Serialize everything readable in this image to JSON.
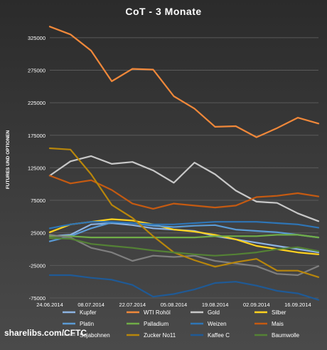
{
  "chart_data": {
    "type": "line",
    "title": "CoT - 3 Monate",
    "ylabel": "FUTURES UND OPTIONEN",
    "xlabel": "",
    "ylim": [
      -75000,
      350000
    ],
    "yticks": [
      -75000,
      -25000,
      25000,
      75000,
      125000,
      175000,
      225000,
      275000,
      325000
    ],
    "ytick_labels": [
      "-75000",
      "-25000",
      "25000",
      "75000",
      "125000",
      "175000",
      "225000",
      "275000",
      "325000"
    ],
    "x": [
      "24.06.2014",
      "01.07.2014",
      "08.07.2014",
      "15.07.2014",
      "22.07.2014",
      "29.07.2014",
      "05.08.2014",
      "12.08.2014",
      "19.08.2014",
      "26.08.2014",
      "02.09.2014",
      "09.09.2014",
      "16.09.2014",
      "23.09.2014"
    ],
    "xtick_labels": [
      "24.06.2014",
      "08.07.2014",
      "22.07.2014",
      "05.08.2014",
      "19.08.2014",
      "02.09.2014",
      "16.09.2014"
    ],
    "grid": true,
    "legend_position": "bottom",
    "series": [
      {
        "name": "Kupfer",
        "color": "#8db3e2",
        "values": [
          20000,
          22000,
          38000,
          40000,
          37000,
          32000,
          30000,
          28000,
          20000,
          15000,
          10000,
          5000,
          0,
          -5000
        ]
      },
      {
        "name": "WTI Rohöl",
        "color": "#f0883a",
        "values": [
          342000,
          330000,
          305000,
          258000,
          277000,
          276000,
          235000,
          216000,
          188000,
          189000,
          172000,
          186000,
          202000,
          193000
        ]
      },
      {
        "name": "Gold",
        "color": "#c8c8c8",
        "values": [
          113000,
          135000,
          143000,
          131000,
          134000,
          121000,
          102000,
          133000,
          115000,
          90000,
          73000,
          71000,
          55000,
          43000
        ]
      },
      {
        "name": "Silber",
        "color": "#ffd21f",
        "values": [
          26000,
          38000,
          42000,
          46000,
          44000,
          38000,
          30000,
          27000,
          22000,
          15000,
          5000,
          0,
          -5000,
          -8000
        ]
      },
      {
        "name": "Platin",
        "color": "#5b9bd5",
        "values": [
          12000,
          20000,
          32000,
          41000,
          40000,
          36000,
          34000,
          36000,
          37000,
          30000,
          28000,
          26000,
          22000,
          18000
        ]
      },
      {
        "name": "Palladium",
        "color": "#70ad47",
        "values": [
          20000,
          20000,
          18000,
          18000,
          18000,
          18000,
          18000,
          18000,
          20000,
          20000,
          20000,
          22000,
          22000,
          18000
        ]
      },
      {
        "name": "Weizen",
        "color": "#2e75b6",
        "values": [
          32000,
          38000,
          42000,
          42000,
          40000,
          38000,
          38000,
          40000,
          42000,
          42000,
          42000,
          40000,
          38000,
          33000
        ]
      },
      {
        "name": "Mais",
        "color": "#c55a11",
        "values": [
          113000,
          101000,
          106000,
          91000,
          70000,
          62000,
          70000,
          67000,
          64000,
          67000,
          80000,
          82000,
          86000,
          81000
        ]
      },
      {
        "name": "Sojabohnen",
        "color": "#7f7f7f",
        "values": [
          22000,
          18000,
          2000,
          -5000,
          -18000,
          -10000,
          -12000,
          -10000,
          -18000,
          -22000,
          -26000,
          -38000,
          -40000,
          -26000
        ]
      },
      {
        "name": "Zucker No11",
        "color": "#b8860b",
        "values": [
          155000,
          153000,
          115000,
          68000,
          48000,
          20000,
          -5000,
          -17000,
          -27000,
          -20000,
          -15000,
          -33000,
          -33000,
          -43000
        ]
      },
      {
        "name": "Kaffee C",
        "color": "#1f5a96",
        "values": [
          -40000,
          -40000,
          -44000,
          -47000,
          -55000,
          -73000,
          -69000,
          -62000,
          -52000,
          -50000,
          -56000,
          -64000,
          -68000,
          -78000
        ]
      },
      {
        "name": "Baumwolle",
        "color": "#548235",
        "values": [
          17000,
          16000,
          8000,
          5000,
          2000,
          -2000,
          -5000,
          -8000,
          -10000,
          -8000,
          -5000,
          0,
          3000,
          -3000
        ]
      }
    ]
  },
  "footer": {
    "source": "sharelibs.com/CFTC"
  }
}
